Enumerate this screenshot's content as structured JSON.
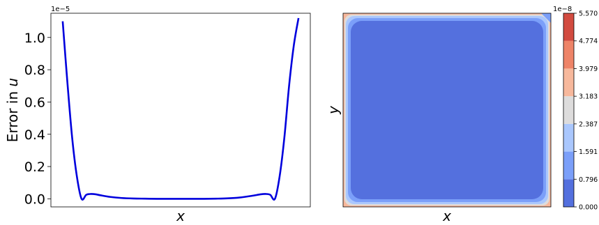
{
  "chart_data": [
    {
      "type": "line",
      "title": "",
      "xlabel": "x",
      "ylabel": "Error in u",
      "offset_label": "1e−5",
      "ylim": [
        -0.05,
        1.15
      ],
      "xlim": [
        -0.05,
        1.05
      ],
      "y_tick_labels": [
        "0.0",
        "0.2",
        "0.4",
        "0.6",
        "0.8",
        "1.0"
      ],
      "y_ticks": [
        0.0,
        0.2,
        0.4,
        0.6,
        0.8,
        1.0
      ],
      "grid": false,
      "line_color": "#0000dd",
      "series": [
        {
          "x": [
            0.0,
            0.02,
            0.04,
            0.06,
            0.08,
            0.1,
            0.12,
            0.14,
            0.16,
            0.2,
            0.25,
            0.3,
            0.35,
            0.4,
            0.45,
            0.5,
            0.55,
            0.6,
            0.65,
            0.7,
            0.75,
            0.8,
            0.84,
            0.86,
            0.88,
            0.9,
            0.92,
            0.94,
            0.96,
            0.98,
            1.0
          ],
          "values": [
            1.1,
            0.72,
            0.38,
            0.14,
            0.0,
            0.025,
            0.03,
            0.028,
            0.022,
            0.012,
            0.005,
            0.002,
            0.001,
            0.0,
            0.0,
            0.0,
            0.0,
            0.0,
            0.001,
            0.003,
            0.008,
            0.018,
            0.028,
            0.03,
            0.025,
            0.0,
            0.14,
            0.38,
            0.7,
            0.95,
            1.12
          ]
        }
      ]
    },
    {
      "type": "heatmap",
      "title": "",
      "xlabel": "x",
      "ylabel": "y",
      "colorbar_offset_label": "1e−8",
      "colorbar_ticks": [
        "0.000",
        "0.796",
        "1.591",
        "2.387",
        "3.183",
        "3.979",
        "4.774",
        "5.570"
      ],
      "levels": [
        0.0,
        0.796,
        1.591,
        2.387,
        3.183,
        3.979,
        4.774,
        5.57
      ],
      "level_colors": [
        "#5470de",
        "#7b9ff9",
        "#aac7fd",
        "#dddcdc",
        "#f7b89c",
        "#ee8468",
        "#d24b40"
      ],
      "note_values": "max error near edges and top-right corner; interior in lowest level"
    }
  ]
}
